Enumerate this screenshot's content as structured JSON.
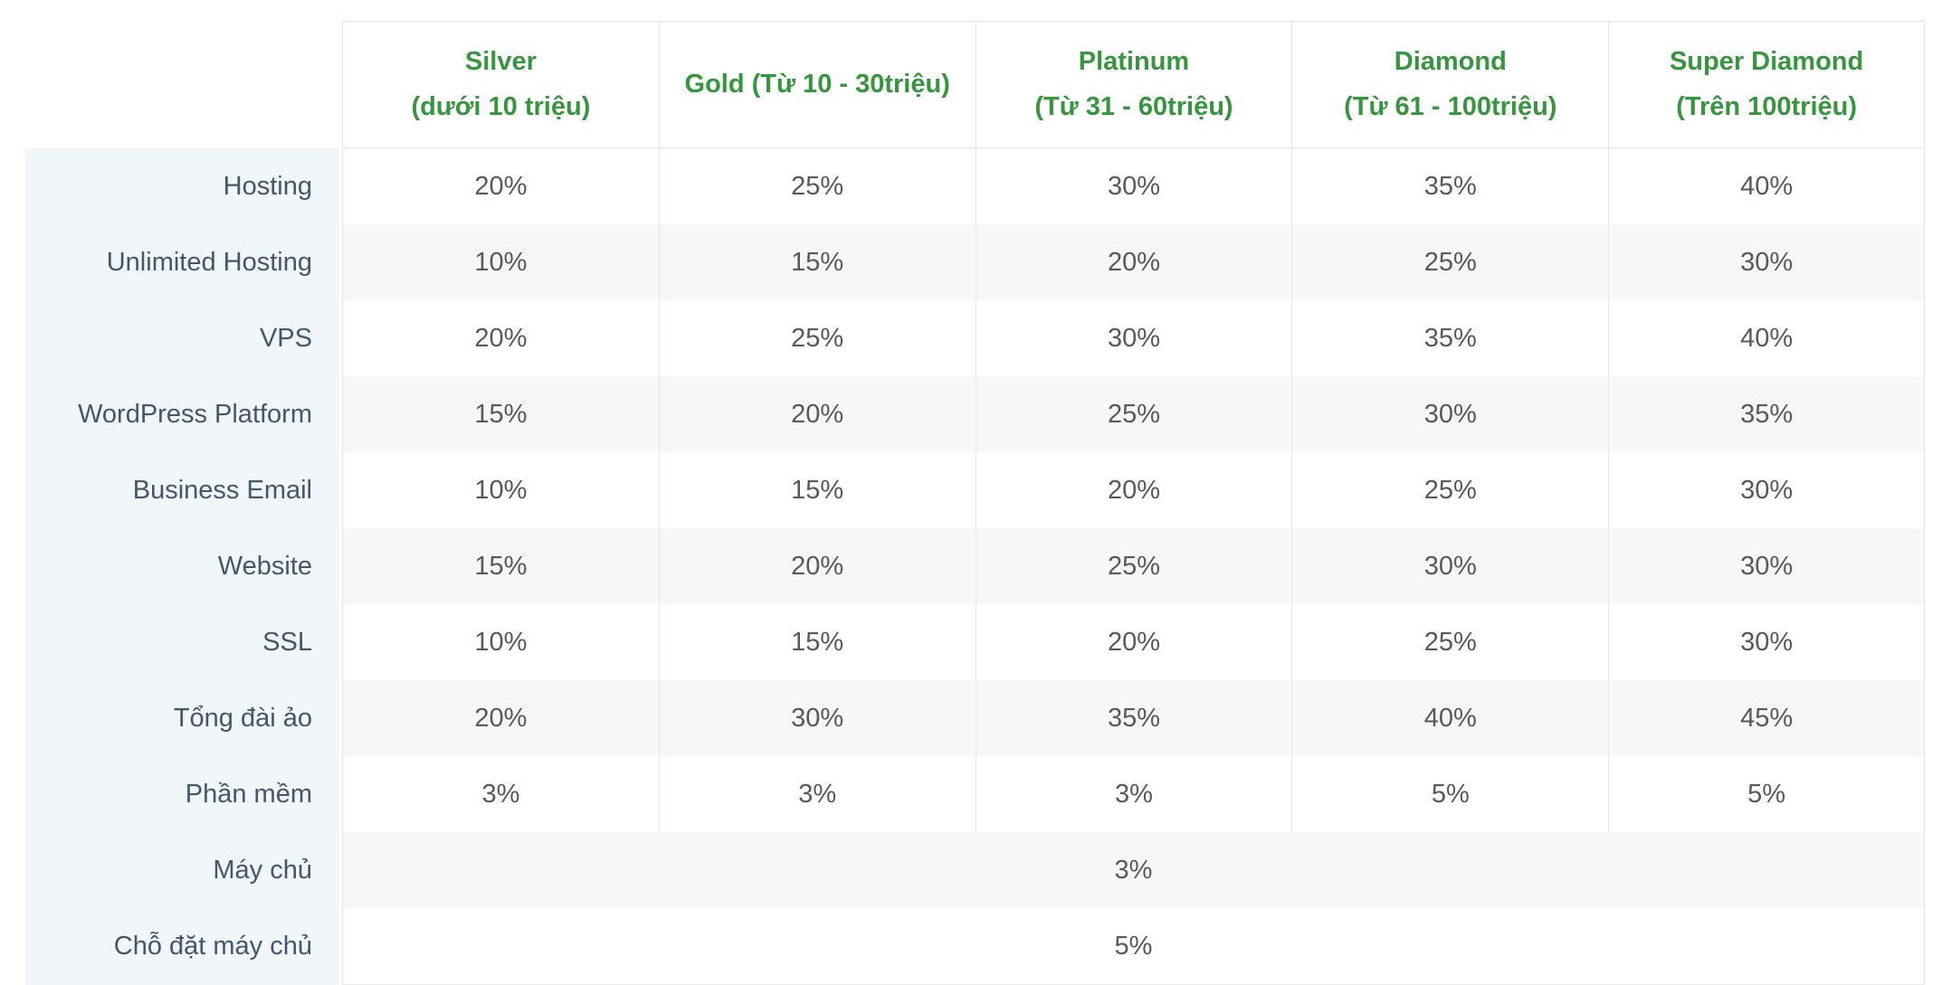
{
  "theme": {
    "accent_green": "#36963e",
    "label_text_color": "#44566b",
    "value_text_color": "#57595c",
    "label_column_bg": "#f1f6f9",
    "stripe_bg": "#f7f7f7",
    "border_color": "#e4e4e4"
  },
  "table": {
    "column_headers": [
      {
        "lines": [
          "Silver",
          "(dưới 10 triệu)"
        ]
      },
      {
        "lines": [
          "Gold (Từ 10 - 30triệu)"
        ]
      },
      {
        "lines": [
          "Platinum",
          "(Từ 31 - 60triệu)"
        ]
      },
      {
        "lines": [
          "Diamond",
          "(Từ 61 - 100triệu)"
        ]
      },
      {
        "lines": [
          "Super Diamond",
          "(Trên 100triệu)"
        ]
      }
    ],
    "rows": [
      {
        "label": "Hosting",
        "values": [
          "20%",
          "25%",
          "30%",
          "35%",
          "40%"
        ]
      },
      {
        "label": "Unlimited Hosting",
        "values": [
          "10%",
          "15%",
          "20%",
          "25%",
          "30%"
        ]
      },
      {
        "label": "VPS",
        "values": [
          "20%",
          "25%",
          "30%",
          "35%",
          "40%"
        ]
      },
      {
        "label": "WordPress Platform",
        "values": [
          "15%",
          "20%",
          "25%",
          "30%",
          "35%"
        ]
      },
      {
        "label": "Business Email",
        "values": [
          "10%",
          "15%",
          "20%",
          "25%",
          "30%"
        ]
      },
      {
        "label": "Website",
        "values": [
          "15%",
          "20%",
          "25%",
          "30%",
          "30%"
        ]
      },
      {
        "label": "SSL",
        "values": [
          "10%",
          "15%",
          "20%",
          "25%",
          "30%"
        ]
      },
      {
        "label": "Tổng đài ảo",
        "values": [
          "20%",
          "30%",
          "35%",
          "40%",
          "45%"
        ]
      },
      {
        "label": "Phần mềm",
        "values": [
          "3%",
          "3%",
          "3%",
          "5%",
          "5%"
        ]
      },
      {
        "label": "Máy chủ",
        "values": [
          "3%"
        ],
        "span": true
      },
      {
        "label": "Chỗ đặt máy chủ",
        "values": [
          "5%"
        ],
        "span": true
      }
    ]
  }
}
